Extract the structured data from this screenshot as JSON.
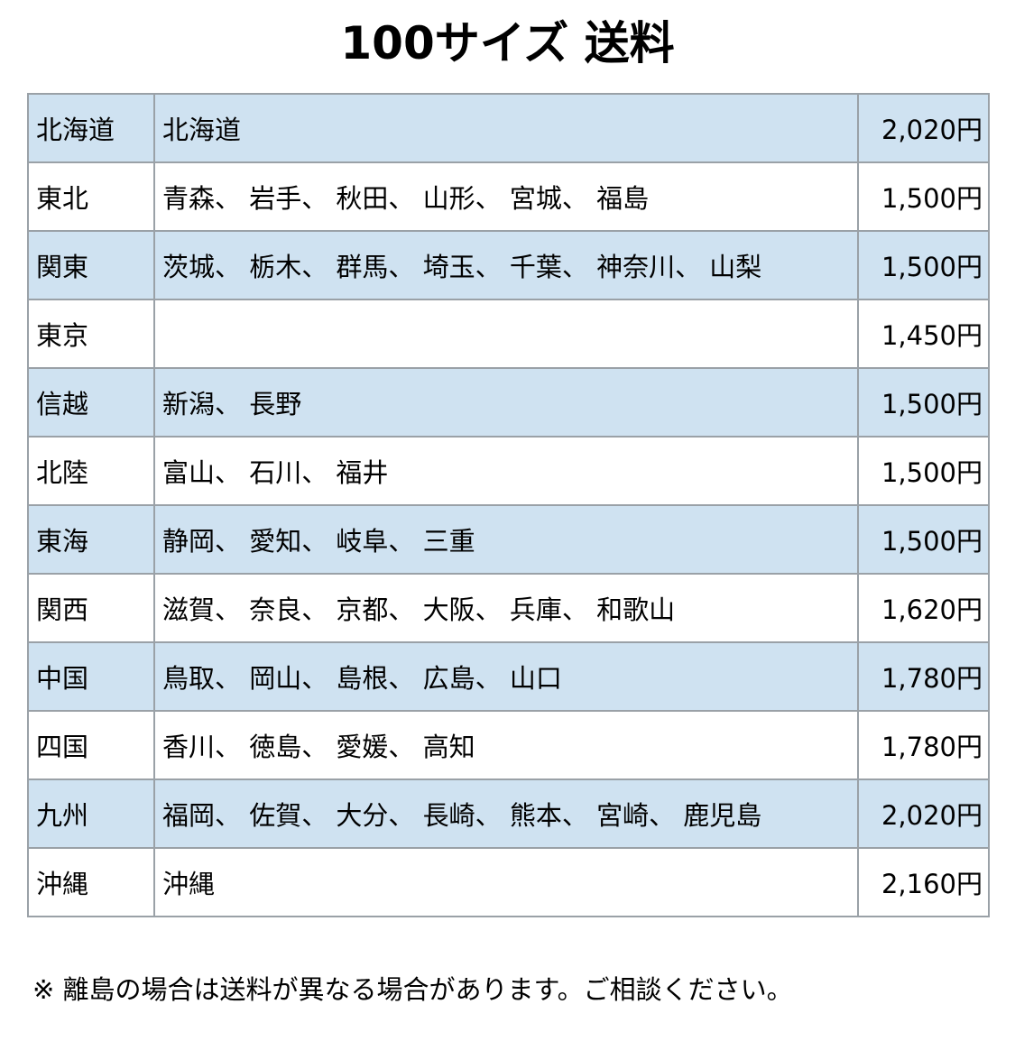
{
  "page": {
    "title": "100サイズ 送料",
    "footnote": "※ 離島の場合は送料が異なる場合があります。ご相談ください。"
  },
  "colors": {
    "shaded_row_bg": "#cfe2f1",
    "plain_row_bg": "#ffffff",
    "border": "#9aa1a7",
    "text": "#000000",
    "background": "#ffffff"
  },
  "table": {
    "columns": [
      "region",
      "prefectures",
      "price"
    ],
    "rows": [
      {
        "region": "北海道",
        "prefectures": "北海道",
        "price": "2,020円",
        "shaded": true
      },
      {
        "region": "東北",
        "prefectures": "青森、 岩手、 秋田、 山形、 宮城、 福島",
        "price": "1,500円",
        "shaded": false
      },
      {
        "region": "関東",
        "prefectures": "茨城、 栃木、 群馬、 埼玉、 千葉、 神奈川、 山梨",
        "price": "1,500円",
        "shaded": true
      },
      {
        "region": "東京",
        "prefectures": "",
        "price": "1,450円",
        "shaded": false
      },
      {
        "region": "信越",
        "prefectures": "新潟、 長野",
        "price": "1,500円",
        "shaded": true
      },
      {
        "region": "北陸",
        "prefectures": "富山、 石川、 福井",
        "price": "1,500円",
        "shaded": false
      },
      {
        "region": "東海",
        "prefectures": "静岡、 愛知、 岐阜、 三重",
        "price": "1,500円",
        "shaded": true
      },
      {
        "region": "関西",
        "prefectures": "滋賀、 奈良、 京都、 大阪、 兵庫、 和歌山",
        "price": "1,620円",
        "shaded": false
      },
      {
        "region": "中国",
        "prefectures": "鳥取、 岡山、 島根、 広島、 山口",
        "price": "1,780円",
        "shaded": true
      },
      {
        "region": "四国",
        "prefectures": "香川、 徳島、 愛媛、 高知",
        "price": "1,780円",
        "shaded": false
      },
      {
        "region": "九州",
        "prefectures": "福岡、 佐賀、 大分、 長崎、 熊本、 宮崎、 鹿児島",
        "price": "2,020円",
        "shaded": true
      },
      {
        "region": "沖縄",
        "prefectures": "沖縄",
        "price": "2,160円",
        "shaded": false
      }
    ]
  }
}
